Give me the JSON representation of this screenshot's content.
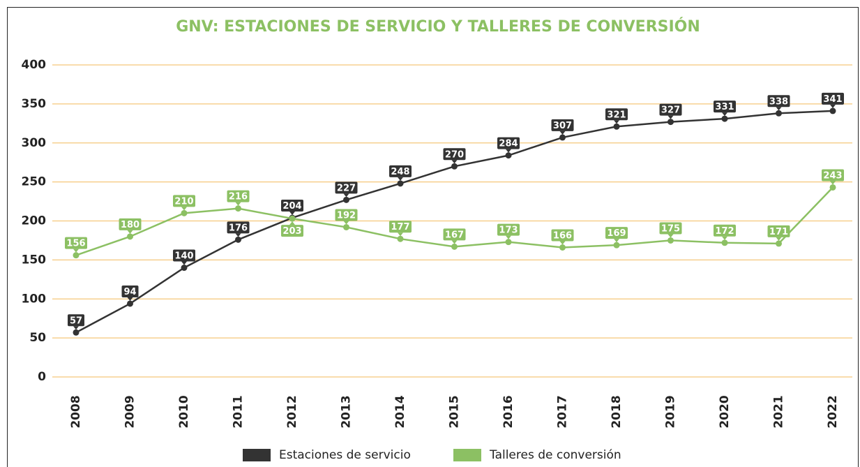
{
  "chart_data": {
    "type": "line",
    "title": "GNV: ESTACIONES DE SERVICIO Y TALLERES DE CONVERSIÓN",
    "categories": [
      "2008",
      "2009",
      "2010",
      "2011",
      "2012",
      "2013",
      "2014",
      "2015",
      "2016",
      "2017",
      "2018",
      "2019",
      "2020",
      "2021",
      "2022"
    ],
    "series": [
      {
        "name": "Estaciones de servicio",
        "color": "#333333",
        "values": [
          57,
          94,
          140,
          176,
          204,
          227,
          248,
          270,
          284,
          307,
          321,
          327,
          331,
          338,
          341
        ]
      },
      {
        "name": "Talleres de conversión",
        "color": "#8cc063",
        "values": [
          156,
          180,
          210,
          216,
          203,
          192,
          177,
          167,
          173,
          166,
          169,
          175,
          172,
          171,
          243
        ]
      }
    ],
    "ylim": [
      0,
      400
    ],
    "yticks": [
      0,
      50,
      100,
      150,
      200,
      250,
      300,
      350,
      400
    ],
    "grid": true,
    "legend": "bottom"
  }
}
